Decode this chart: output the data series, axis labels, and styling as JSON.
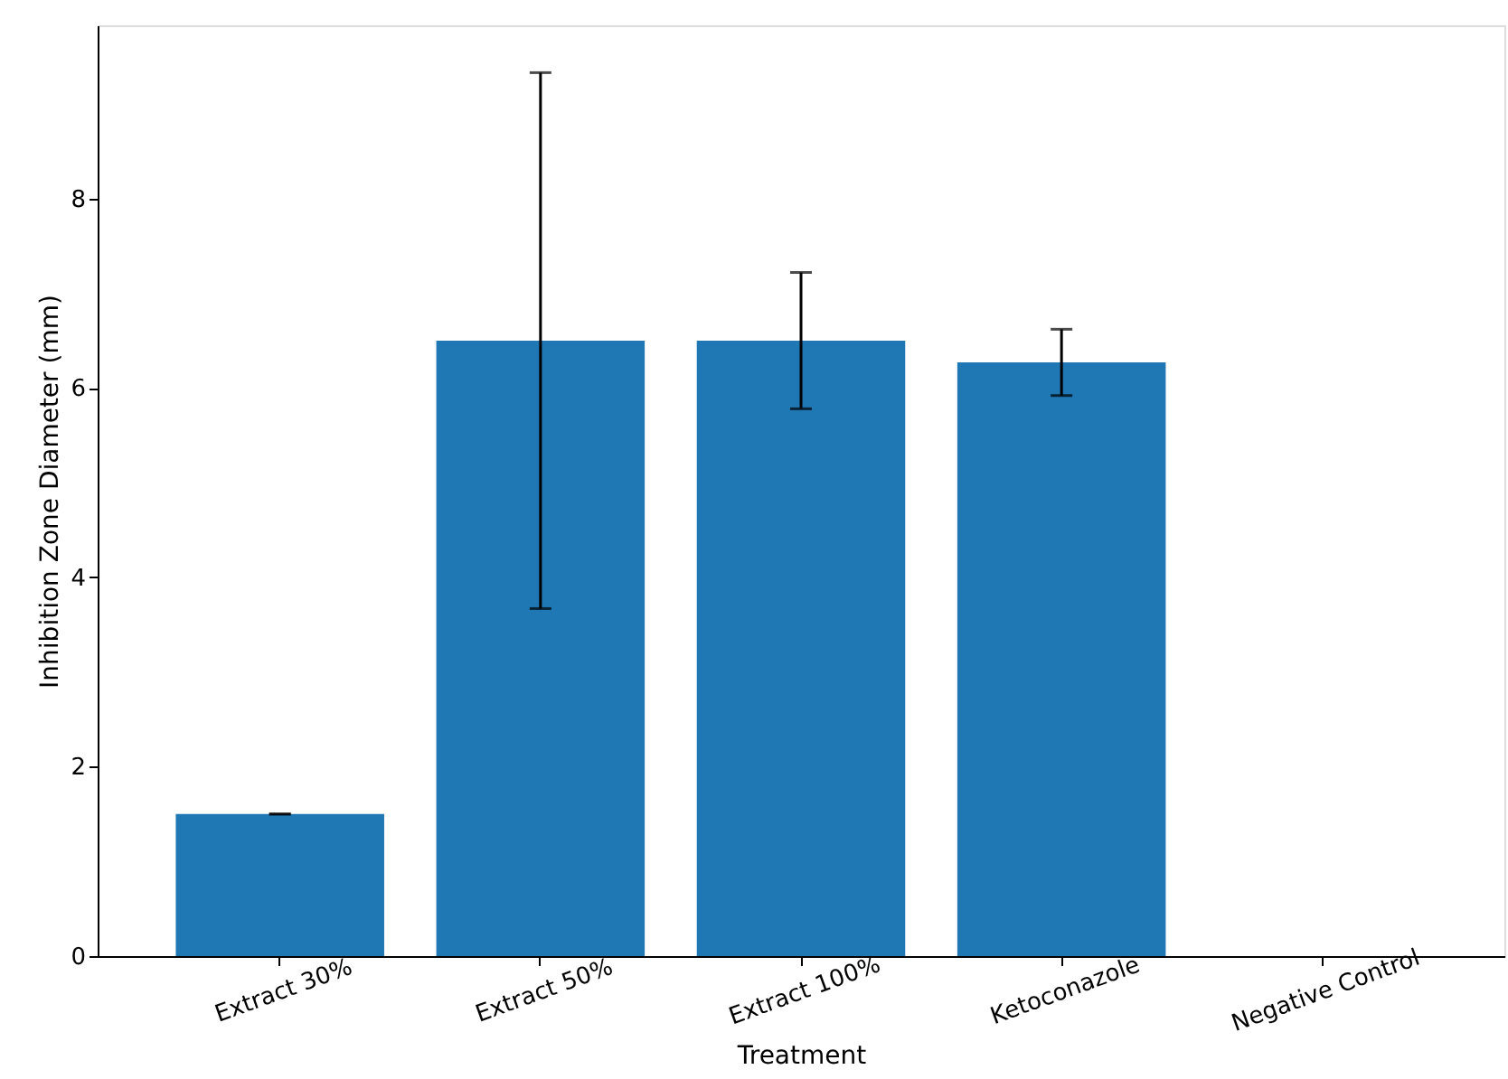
{
  "chart_data": {
    "type": "bar",
    "xlabel": "Treatment",
    "ylabel": "Inhibition Zone Diameter (mm)",
    "categories": [
      "Extract 30%",
      "Extract 50%",
      "Extract 100%",
      "Ketoconazole",
      "Negative Control"
    ],
    "values": [
      1.5,
      6.5,
      6.5,
      6.27,
      0
    ],
    "errors": [
      0,
      2.83,
      0.72,
      0.35,
      null
    ],
    "color": "#1f77b4",
    "ylim": [
      0,
      9.83
    ],
    "yticks": [
      0,
      2,
      4,
      6,
      8
    ],
    "grid": false
  }
}
